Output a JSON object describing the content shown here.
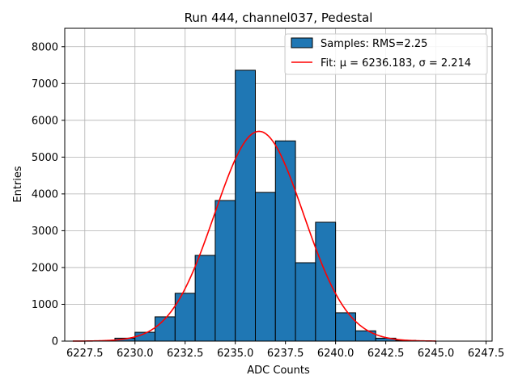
{
  "chart_data": {
    "type": "bar",
    "title": "Run 444, channel037, Pedestal",
    "xlabel": "ADC Counts",
    "ylabel": "Entries",
    "xlim": [
      6226.5,
      6247.8
    ],
    "ylim": [
      0,
      8500
    ],
    "xticks": [
      6227.5,
      6230.0,
      6232.5,
      6235.0,
      6237.5,
      6240.0,
      6242.5,
      6245.0,
      6247.5
    ],
    "xtick_labels": [
      "6227.5",
      "6230.0",
      "6232.5",
      "6235.0",
      "6237.5",
      "6240.0",
      "6242.5",
      "6245.0",
      "6247.5"
    ],
    "yticks": [
      0,
      1000,
      2000,
      3000,
      4000,
      5000,
      6000,
      7000,
      8000
    ],
    "ytick_labels": [
      "0",
      "1000",
      "2000",
      "3000",
      "4000",
      "5000",
      "6000",
      "7000",
      "8000"
    ],
    "grid": true,
    "legend_position": "top-right",
    "bin_edges": [
      6227,
      6228,
      6229,
      6230,
      6231,
      6232,
      6233,
      6234,
      6235,
      6236,
      6237,
      6238,
      6239,
      6240,
      6241,
      6242,
      6243,
      6244,
      6245,
      6246,
      6247
    ],
    "series": [
      {
        "name": "Samples: RMS=2.25",
        "kind": "histogram",
        "color": "#1f77b4",
        "values": [
          0,
          0,
          80,
          240,
          660,
          1300,
          2330,
          3820,
          7360,
          4040,
          5440,
          2130,
          3230,
          770,
          280,
          80,
          20,
          0,
          0,
          0
        ]
      },
      {
        "name": "Fit: μ = 6236.183, σ = 2.214",
        "kind": "line",
        "color": "#ff0000",
        "mu": 6236.183,
        "sigma": 2.214,
        "amplitude": 5700,
        "x_range": [
          6226.9,
          6245.0
        ]
      }
    ]
  }
}
